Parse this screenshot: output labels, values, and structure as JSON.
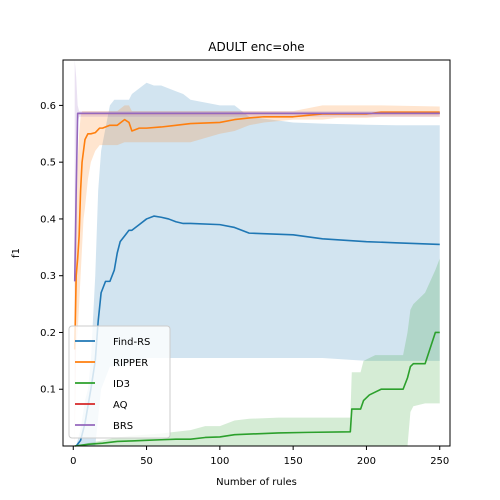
{
  "chart_data": {
    "type": "line",
    "title": "ADULT enc=ohe",
    "xlabel": "Number of rules",
    "ylabel": "f1",
    "xlim": [
      -7,
      257
    ],
    "ylim": [
      0.0,
      0.68
    ],
    "xticks": [
      0,
      50,
      100,
      150,
      200,
      250
    ],
    "yticks": [
      0.1,
      0.2,
      0.3,
      0.4,
      0.5,
      0.6
    ],
    "ytick_labels": [
      "0.1",
      "0.2",
      "0.3",
      "0.4",
      "0.5",
      "0.6"
    ],
    "legend_position": "lower-left",
    "grid": false,
    "series": [
      {
        "name": "Find-RS",
        "color": "#1f77b4",
        "x": [
          2,
          5,
          8,
          10,
          12,
          15,
          17,
          19,
          22,
          25,
          28,
          30,
          32,
          35,
          38,
          40,
          45,
          50,
          55,
          60,
          65,
          70,
          75,
          80,
          100,
          110,
          120,
          150,
          170,
          200,
          220,
          250
        ],
        "y": [
          0.0,
          0.01,
          0.04,
          0.07,
          0.1,
          0.15,
          0.22,
          0.27,
          0.29,
          0.29,
          0.31,
          0.34,
          0.36,
          0.37,
          0.38,
          0.38,
          0.39,
          0.4,
          0.405,
          0.403,
          0.4,
          0.395,
          0.392,
          0.392,
          0.39,
          0.385,
          0.375,
          0.372,
          0.365,
          0.36,
          0.358,
          0.355
        ],
        "band_upper": [
          0.0,
          0.03,
          0.08,
          0.1,
          0.15,
          0.3,
          0.45,
          0.52,
          0.56,
          0.6,
          0.61,
          0.61,
          0.61,
          0.61,
          0.61,
          0.62,
          0.63,
          0.64,
          0.635,
          0.635,
          0.63,
          0.625,
          0.62,
          0.61,
          0.6,
          0.6,
          0.58,
          0.57,
          0.568,
          0.566,
          0.565,
          0.565
        ],
        "band_lower": [
          0.0,
          0.0,
          0.0,
          0.0,
          0.0,
          0.0,
          0.05,
          0.1,
          0.12,
          0.14,
          0.14,
          0.14,
          0.14,
          0.14,
          0.145,
          0.15,
          0.15,
          0.155,
          0.155,
          0.155,
          0.155,
          0.155,
          0.155,
          0.155,
          0.155,
          0.155,
          0.155,
          0.155,
          0.155,
          0.15,
          0.15,
          0.15
        ]
      },
      {
        "name": "RIPPER",
        "color": "#ff7f0e",
        "x": [
          1,
          2,
          3,
          4,
          5,
          6,
          7,
          8,
          10,
          12,
          15,
          18,
          20,
          23,
          25,
          30,
          35,
          38,
          40,
          45,
          50,
          60,
          70,
          80,
          100,
          110,
          120,
          130,
          150,
          170,
          180,
          200,
          210,
          250
        ],
        "y": [
          0.17,
          0.3,
          0.33,
          0.37,
          0.45,
          0.5,
          0.52,
          0.54,
          0.55,
          0.55,
          0.552,
          0.56,
          0.56,
          0.563,
          0.565,
          0.565,
          0.575,
          0.57,
          0.555,
          0.56,
          0.56,
          0.562,
          0.565,
          0.568,
          0.57,
          0.575,
          0.578,
          0.58,
          0.58,
          0.585,
          0.585,
          0.585,
          0.588,
          0.588
        ],
        "band_upper": [
          0.3,
          0.4,
          0.5,
          0.55,
          0.58,
          0.59,
          0.59,
          0.59,
          0.59,
          0.59,
          0.59,
          0.59,
          0.59,
          0.59,
          0.59,
          0.59,
          0.6,
          0.6,
          0.59,
          0.59,
          0.59,
          0.59,
          0.59,
          0.59,
          0.59,
          0.59,
          0.59,
          0.59,
          0.59,
          0.6,
          0.6,
          0.6,
          0.6,
          0.598
        ],
        "band_lower": [
          0.0,
          0.18,
          0.2,
          0.25,
          0.3,
          0.35,
          0.4,
          0.42,
          0.47,
          0.5,
          0.52,
          0.53,
          0.53,
          0.53,
          0.53,
          0.53,
          0.535,
          0.535,
          0.535,
          0.535,
          0.535,
          0.535,
          0.535,
          0.535,
          0.55,
          0.555,
          0.565,
          0.57,
          0.575,
          0.575,
          0.578,
          0.578,
          0.58,
          0.58
        ]
      },
      {
        "name": "ID3",
        "color": "#2ca02c",
        "x": [
          1,
          10,
          20,
          30,
          40,
          50,
          60,
          70,
          80,
          90,
          100,
          110,
          120,
          140,
          160,
          189,
          190,
          196,
          198,
          202,
          206,
          210,
          225,
          228,
          230,
          232,
          240,
          247,
          250
        ],
        "y": [
          0.0,
          0.003,
          0.005,
          0.008,
          0.009,
          0.01,
          0.011,
          0.012,
          0.012,
          0.015,
          0.016,
          0.02,
          0.021,
          0.023,
          0.024,
          0.025,
          0.065,
          0.065,
          0.08,
          0.09,
          0.095,
          0.1,
          0.1,
          0.12,
          0.14,
          0.145,
          0.145,
          0.2,
          0.2
        ],
        "band_upper": [
          0.0,
          0.005,
          0.01,
          0.015,
          0.018,
          0.02,
          0.022,
          0.025,
          0.028,
          0.035,
          0.035,
          0.045,
          0.048,
          0.05,
          0.05,
          0.05,
          0.13,
          0.13,
          0.15,
          0.155,
          0.16,
          0.16,
          0.16,
          0.2,
          0.24,
          0.25,
          0.27,
          0.31,
          0.33
        ],
        "band_lower": [
          0.0,
          0.0,
          0.0,
          0.0,
          0.0,
          0.0,
          0.0,
          0.0,
          0.0,
          0.0,
          0.0,
          0.0,
          0.0,
          0.0,
          0.0,
          0.0,
          0.0,
          0.0,
          0.0,
          0.0,
          0.0,
          0.0,
          0.0,
          0.0,
          0.06,
          0.07,
          0.075,
          0.075,
          0.075
        ]
      },
      {
        "name": "AQ",
        "color": "#d62728",
        "x": [
          3,
          250
        ],
        "y": [
          0.586,
          0.586
        ],
        "band_upper": [
          0.586,
          0.586
        ],
        "band_lower": [
          0.586,
          0.586
        ]
      },
      {
        "name": "BRS",
        "color": "#9467bd",
        "x": [
          1,
          2,
          3,
          4,
          250
        ],
        "y": [
          0.29,
          0.45,
          0.586,
          0.586,
          0.586
        ],
        "band_upper": [
          0.68,
          0.65,
          0.6,
          0.59,
          0.59
        ],
        "band_lower": [
          0.0,
          0.25,
          0.57,
          0.58,
          0.58
        ]
      }
    ]
  }
}
